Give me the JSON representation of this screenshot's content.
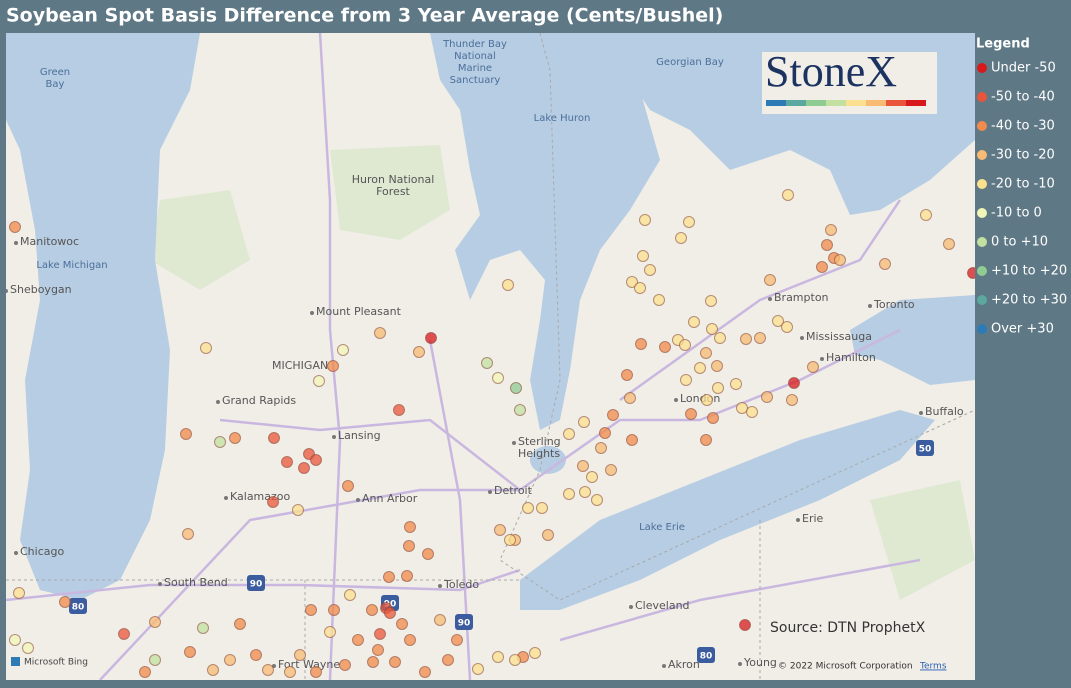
{
  "title": "Soybean Spot Basis Difference from 3 Year Average (Cents/Bushel)",
  "legend": {
    "title": "Legend",
    "items": [
      {
        "label": "Under -50",
        "color": "#d7191c"
      },
      {
        "label": "-50 to -40",
        "color": "#e8553a"
      },
      {
        "label": "-40 to -30",
        "color": "#f08b4b"
      },
      {
        "label": "-30 to -20",
        "color": "#f7bb74"
      },
      {
        "label": "-20 to -10",
        "color": "#fbe08f"
      },
      {
        "label": "-10 to 0",
        "color": "#f2f5b8"
      },
      {
        "label": "0 to +10",
        "color": "#c2e0a0"
      },
      {
        "label": "+10 to +20",
        "color": "#8fcc92"
      },
      {
        "label": "+20 to +30",
        "color": "#5aa8a0"
      },
      {
        "label": "Over +30",
        "color": "#2c7bb6"
      }
    ]
  },
  "logo": "StoneX",
  "source": "Source: DTN ProphetX",
  "attribution": {
    "provider": "Microsoft Bing",
    "copyright": "© 2022 Microsoft Corporation",
    "terms": "Terms"
  },
  "map_labels": [
    [
      "Green",
      "Bay"
    ],
    [
      "Thunder Bay",
      "National",
      "Marine",
      "Sanctuary"
    ],
    [
      "Georgian Bay"
    ],
    [
      "Lake Huron"
    ],
    [
      "Huron National",
      "Forest"
    ],
    [
      "Manitowoc"
    ],
    [
      "Lake Michigan"
    ],
    [
      "Sheboygan"
    ],
    [
      "Mount Pleasant"
    ],
    [
      "MICHIGAN"
    ],
    [
      "Grand Rapids"
    ],
    [
      "Lansing"
    ],
    [
      "Sterling",
      "Heights"
    ],
    [
      "Detroit"
    ],
    [
      "Ann Arbor"
    ],
    [
      "Kalamazoo"
    ],
    [
      "Chicago"
    ],
    [
      "South Bend"
    ],
    [
      "Toledo"
    ],
    [
      "Fort Wayne"
    ],
    [
      "Lake Erie"
    ],
    [
      "Erie"
    ],
    [
      "Cleveland"
    ],
    [
      "Akron"
    ],
    [
      "Young"
    ],
    [
      "London"
    ],
    [
      "Brampton"
    ],
    [
      "Toronto"
    ],
    [
      "Mississauga"
    ],
    [
      "Hamilton"
    ],
    [
      "Buffalo"
    ]
  ],
  "highway_shields": [
    "80",
    "90",
    "90",
    "90",
    "80",
    "50"
  ]
}
